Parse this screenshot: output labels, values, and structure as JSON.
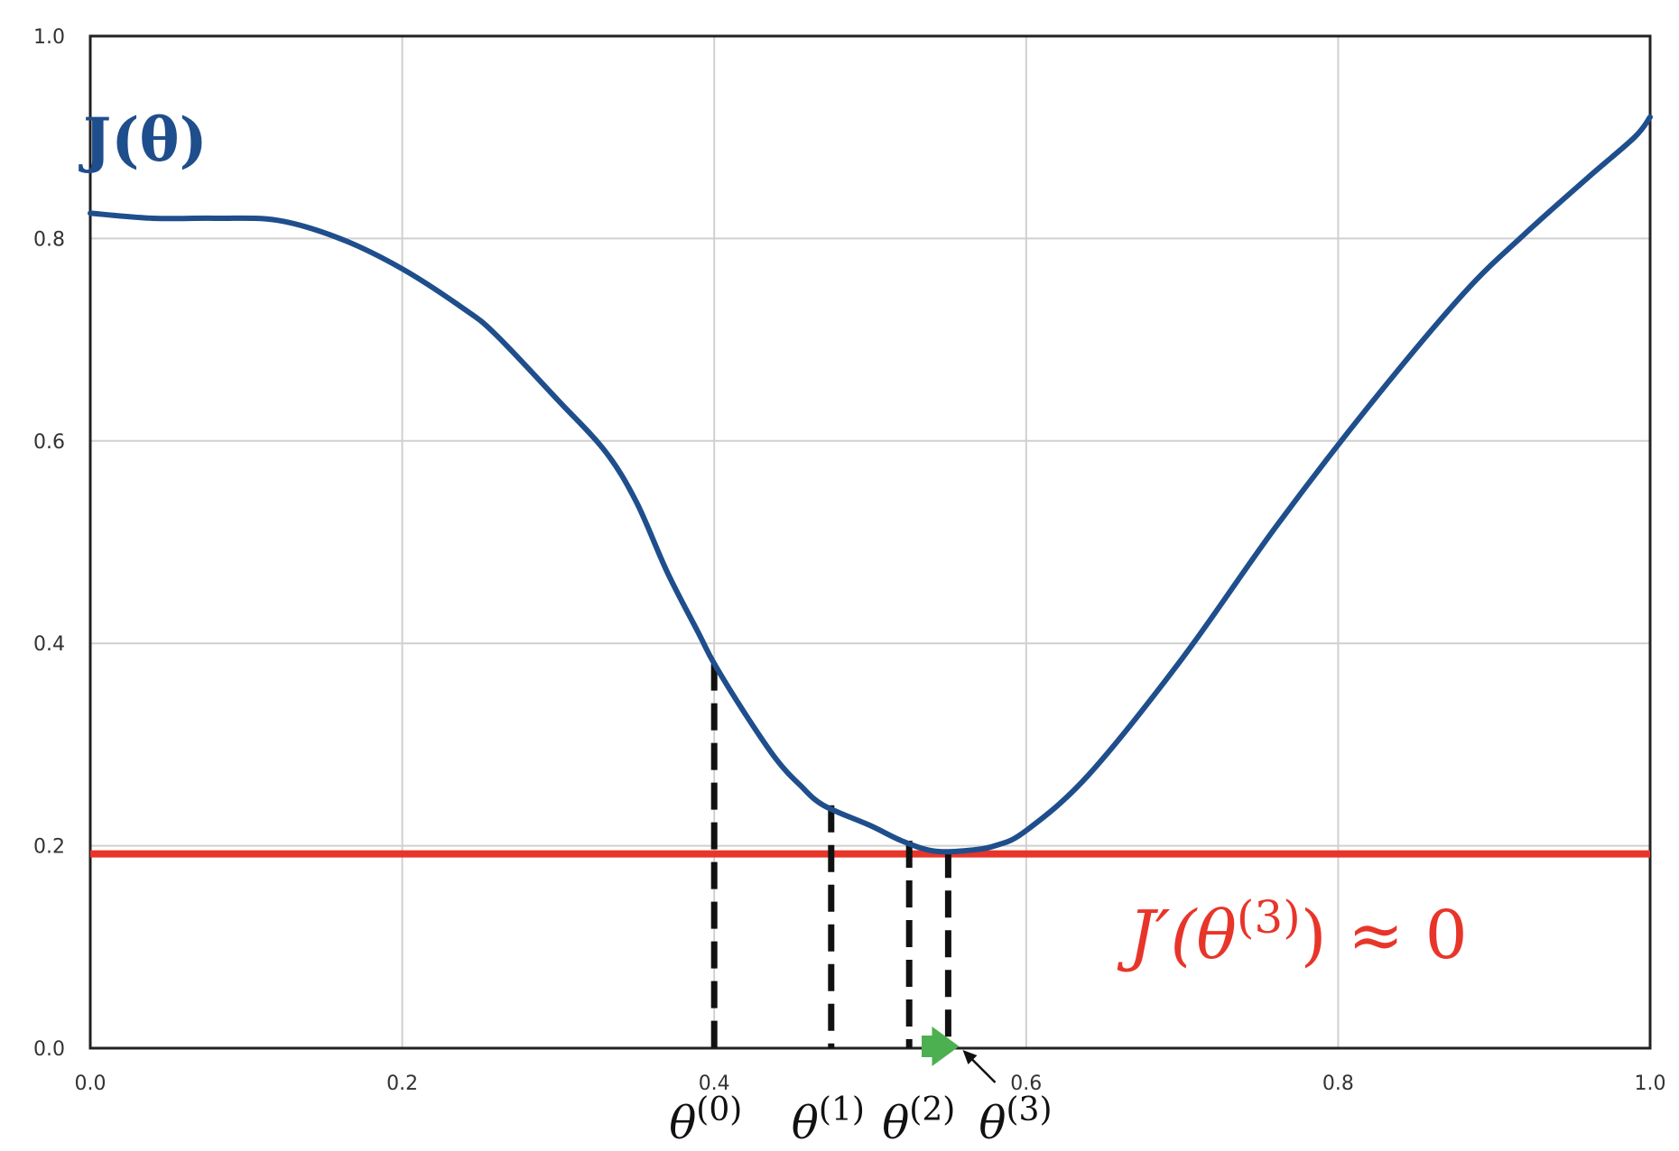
{
  "chart_data": {
    "type": "line",
    "xlim": [
      0,
      1
    ],
    "ylim": [
      0,
      1
    ],
    "grid": true,
    "x_ticks": [
      "0.0",
      "0.2",
      "0.4",
      "0.6",
      "0.8",
      "1.0"
    ],
    "y_ticks": [
      "0.0",
      "0.2",
      "0.4",
      "0.6",
      "0.8",
      "1.0"
    ],
    "curve_label": "J(θ)",
    "series": [
      {
        "color": "#1f4e8c",
        "x": [
          0.0,
          0.04,
          0.08,
          0.12,
          0.16,
          0.2,
          0.24,
          0.26,
          0.3,
          0.33,
          0.35,
          0.37,
          0.39,
          0.4,
          0.42,
          0.44,
          0.455,
          0.47,
          0.5,
          0.52,
          0.54,
          0.56,
          0.58,
          0.6,
          0.64,
          0.7,
          0.76,
          0.82,
          0.88,
          0.92,
          0.96,
          0.99,
          1.0
        ],
        "y": [
          0.825,
          0.82,
          0.82,
          0.818,
          0.8,
          0.77,
          0.73,
          0.705,
          0.64,
          0.59,
          0.54,
          0.47,
          0.41,
          0.38,
          0.33,
          0.285,
          0.26,
          0.24,
          0.22,
          0.205,
          0.195,
          0.195,
          0.2,
          0.215,
          0.27,
          0.385,
          0.515,
          0.635,
          0.745,
          0.805,
          0.86,
          0.9,
          0.92
        ]
      }
    ],
    "threshold": {
      "y": 0.192,
      "color": "#e8352a"
    },
    "iterates": [
      {
        "label": "θ",
        "sup": "(0)",
        "x": 0.4,
        "y": 0.38
      },
      {
        "label": "θ",
        "sup": "(1)",
        "x": 0.475,
        "y": 0.24
      },
      {
        "label": "θ",
        "sup": "(2)",
        "x": 0.525,
        "y": 0.205
      },
      {
        "label": "θ",
        "sup": "(3)",
        "x": 0.55,
        "y": 0.195
      }
    ],
    "step_arrow": {
      "from_x": 0.533,
      "to_x": 0.557,
      "color": "#4caf50"
    },
    "annotation": {
      "text_main": "J′(θ",
      "text_sup": "(3)",
      "text_end": ") ≈ 0",
      "color": "#e8352a"
    }
  }
}
